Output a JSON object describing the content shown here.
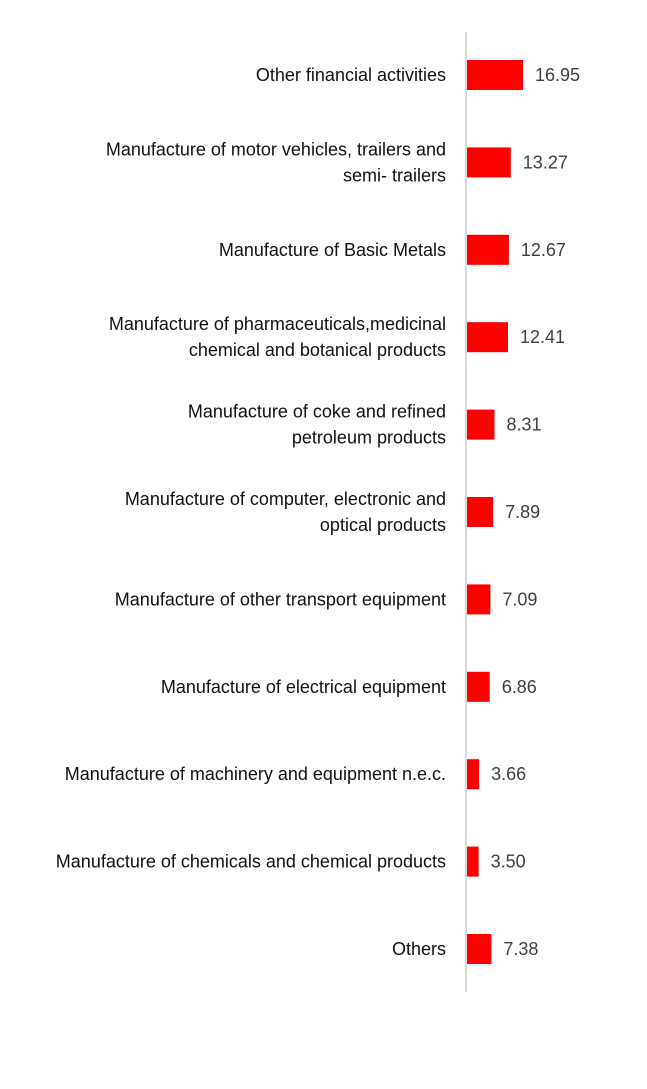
{
  "chart_data": {
    "type": "bar",
    "orientation": "horizontal",
    "categories": [
      [
        "Other financial activities"
      ],
      [
        "Manufacture of motor vehicles, trailers and",
        "semi- trailers"
      ],
      [
        "Manufacture of Basic Metals"
      ],
      [
        "Manufacture of pharmaceuticals,medicinal",
        "chemical and botanical products"
      ],
      [
        "Manufacture of coke and refined",
        "petroleum products"
      ],
      [
        "Manufacture of computer, electronic and",
        "optical products"
      ],
      [
        "Manufacture of other transport equipment"
      ],
      [
        "Manufacture of electrical equipment"
      ],
      [
        "Manufacture of machinery and equipment n.e.c."
      ],
      [
        "Manufacture of chemicals and chemical products"
      ],
      [
        "Others"
      ]
    ],
    "values": [
      16.95,
      13.27,
      12.67,
      12.41,
      8.31,
      7.89,
      7.09,
      6.86,
      3.66,
      3.5,
      7.38
    ],
    "value_labels": [
      "16.95",
      "13.27",
      "12.67",
      "12.41",
      "8.31",
      "7.89",
      "7.09",
      "6.86",
      "3.66",
      "3.50",
      "7.38"
    ],
    "title": "",
    "xlabel": "",
    "ylabel": "",
    "xlim": [
      0,
      16.95
    ],
    "grid": false,
    "legend": "none",
    "bar_color": "#FF0000",
    "axis_color": "#D9D9D9"
  }
}
